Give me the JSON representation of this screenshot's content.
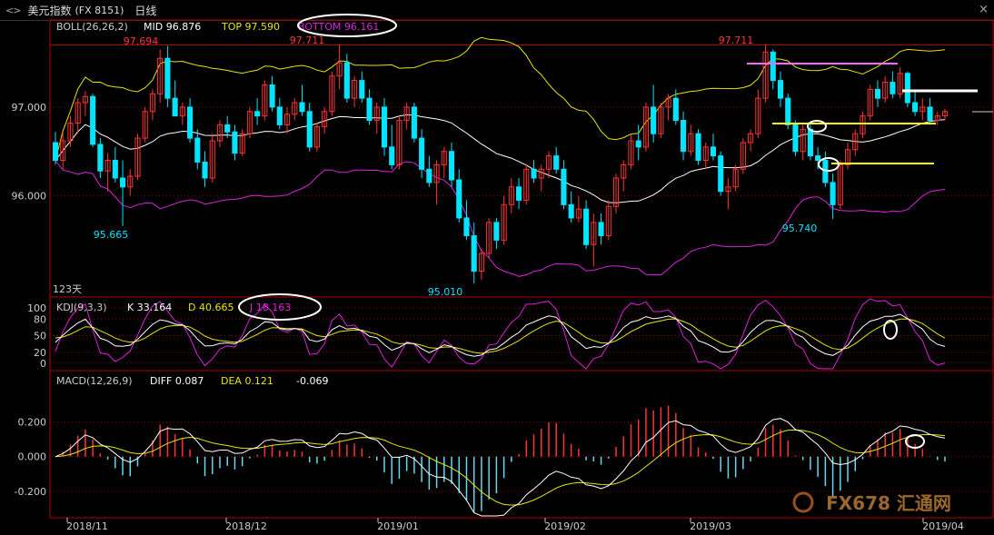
{
  "window": {
    "nav": "<>",
    "title": "美元指数",
    "code": "(FX 8151)",
    "period": "日线",
    "close_glyph": "×"
  },
  "watermark": "FX678 汇通网",
  "colors": {
    "up": "#ff3333",
    "down": "#00e5ff",
    "mid": "#ffffff",
    "top": "#e6e600",
    "bottom": "#dd22dd",
    "k": "#ffffff",
    "d": "#e6e600",
    "j": "#dd22dd",
    "diff": "#ffffff",
    "dea": "#e6e600",
    "grid": "#8b0000",
    "frame": "#b00000",
    "annotation_circle": "#ffffff"
  },
  "chart_data": [
    {
      "type": "candlestick",
      "title": "BOLL(26,26,2)",
      "legend": [
        {
          "label": "MID 96.876",
          "color": "#ffffff"
        },
        {
          "label": "TOP 97.590",
          "color": "#e6e600"
        },
        {
          "label": "BOTTOM 96.161",
          "color": "#dd22dd"
        }
      ],
      "yticks": [
        "97.000",
        "96.000"
      ],
      "ytick_values": [
        97.0,
        96.0
      ],
      "ylim": [
        94.9,
        97.9
      ],
      "xticks": [
        "2018/11",
        "2018/12",
        "2019/01",
        "2019/02",
        "2019/03",
        "2019/04"
      ],
      "annotations": [
        "97.694",
        "97.711",
        "97.711",
        "95.665",
        "95.010",
        "95.740",
        "123天"
      ],
      "ohlc": [
        [
          96.6,
          96.72,
          96.35,
          96.4
        ],
        [
          96.4,
          96.72,
          96.3,
          96.62
        ],
        [
          96.62,
          96.9,
          96.55,
          96.82
        ],
        [
          96.82,
          97.1,
          96.7,
          97.05
        ],
        [
          97.05,
          97.18,
          96.9,
          97.12
        ],
        [
          97.12,
          97.15,
          96.55,
          96.58
        ],
        [
          96.58,
          96.65,
          96.2,
          96.28
        ],
        [
          96.28,
          96.48,
          96.05,
          96.4
        ],
        [
          96.4,
          96.55,
          96.15,
          96.2
        ],
        [
          96.2,
          96.4,
          95.66,
          96.1
        ],
        [
          96.1,
          96.3,
          96.0,
          96.22
        ],
        [
          96.22,
          96.7,
          96.18,
          96.65
        ],
        [
          96.65,
          97.0,
          96.6,
          96.95
        ],
        [
          96.95,
          97.2,
          96.85,
          97.15
        ],
        [
          97.15,
          97.65,
          97.05,
          97.55
        ],
        [
          97.55,
          97.69,
          97.0,
          97.1
        ],
        [
          97.1,
          97.3,
          96.9,
          96.9
        ],
        [
          96.9,
          97.05,
          96.8,
          97.0
        ],
        [
          97.0,
          97.1,
          96.6,
          96.65
        ],
        [
          96.65,
          96.75,
          96.3,
          96.38
        ],
        [
          96.38,
          96.5,
          96.1,
          96.2
        ],
        [
          96.2,
          96.7,
          96.15,
          96.62
        ],
        [
          96.62,
          96.85,
          96.55,
          96.8
        ],
        [
          96.8,
          96.9,
          96.65,
          96.72
        ],
        [
          96.72,
          96.8,
          96.4,
          96.48
        ],
        [
          96.48,
          96.75,
          96.45,
          96.7
        ],
        [
          96.7,
          97.0,
          96.65,
          96.95
        ],
        [
          96.95,
          97.1,
          96.8,
          96.9
        ],
        [
          96.9,
          97.3,
          96.85,
          97.25
        ],
        [
          97.25,
          97.35,
          96.95,
          97.0
        ],
        [
          97.0,
          97.1,
          96.75,
          96.8
        ],
        [
          96.8,
          97.0,
          96.7,
          96.92
        ],
        [
          96.92,
          97.1,
          96.85,
          97.05
        ],
        [
          97.05,
          97.25,
          96.9,
          96.95
        ],
        [
          96.95,
          97.05,
          96.5,
          96.55
        ],
        [
          96.55,
          96.82,
          96.5,
          96.78
        ],
        [
          96.78,
          97.0,
          96.7,
          96.95
        ],
        [
          96.95,
          97.4,
          96.9,
          97.35
        ],
        [
          97.35,
          97.71,
          97.2,
          97.5
        ],
        [
          97.5,
          97.6,
          97.05,
          97.1
        ],
        [
          97.1,
          97.35,
          97.0,
          97.3
        ],
        [
          97.3,
          97.4,
          97.05,
          97.1
        ],
        [
          97.1,
          97.2,
          96.8,
          96.85
        ],
        [
          96.85,
          97.05,
          96.7,
          97.0
        ],
        [
          97.0,
          97.1,
          96.45,
          96.55
        ],
        [
          96.55,
          96.8,
          96.3,
          96.35
        ],
        [
          96.35,
          96.9,
          96.3,
          96.85
        ],
        [
          96.85,
          97.05,
          96.75,
          97.0
        ],
        [
          97.0,
          97.05,
          96.6,
          96.65
        ],
        [
          96.65,
          96.75,
          96.2,
          96.3
        ],
        [
          96.3,
          96.45,
          96.1,
          96.15
        ],
        [
          96.15,
          96.4,
          95.9,
          96.35
        ],
        [
          96.35,
          96.55,
          96.2,
          96.5
        ],
        [
          96.5,
          96.6,
          96.1,
          96.18
        ],
        [
          96.18,
          96.3,
          95.7,
          95.75
        ],
        [
          95.75,
          95.95,
          95.5,
          95.55
        ],
        [
          95.55,
          95.7,
          95.01,
          95.15
        ],
        [
          95.15,
          95.4,
          95.05,
          95.35
        ],
        [
          95.35,
          95.75,
          95.3,
          95.7
        ],
        [
          95.7,
          95.75,
          95.4,
          95.5
        ],
        [
          95.5,
          96.0,
          95.45,
          95.9
        ],
        [
          95.9,
          96.2,
          95.8,
          96.1
        ],
        [
          96.1,
          96.2,
          95.85,
          95.95
        ],
        [
          95.95,
          96.35,
          95.9,
          96.3
        ],
        [
          96.3,
          96.4,
          96.15,
          96.2
        ],
        [
          96.2,
          96.35,
          96.05,
          96.3
        ],
        [
          96.3,
          96.5,
          96.2,
          96.45
        ],
        [
          96.45,
          96.55,
          96.25,
          96.3
        ],
        [
          96.3,
          96.4,
          95.85,
          95.9
        ],
        [
          95.9,
          96.05,
          95.7,
          95.75
        ],
        [
          95.75,
          96.0,
          95.7,
          95.85
        ],
        [
          95.85,
          95.95,
          95.4,
          95.45
        ],
        [
          95.45,
          95.8,
          95.2,
          95.7
        ],
        [
          95.7,
          95.8,
          95.45,
          95.55
        ],
        [
          95.55,
          95.95,
          95.5,
          95.88
        ],
        [
          95.88,
          96.25,
          95.8,
          96.2
        ],
        [
          96.2,
          96.4,
          96.05,
          96.35
        ],
        [
          96.35,
          96.7,
          96.3,
          96.62
        ],
        [
          96.62,
          96.8,
          96.4,
          96.55
        ],
        [
          96.55,
          97.05,
          96.5,
          97.0
        ],
        [
          97.0,
          97.25,
          96.6,
          96.7
        ],
        [
          96.7,
          97.05,
          96.65,
          97.0
        ],
        [
          97.0,
          97.15,
          96.85,
          97.1
        ],
        [
          97.1,
          97.2,
          96.8,
          96.85
        ],
        [
          96.85,
          96.95,
          96.4,
          96.5
        ],
        [
          96.5,
          96.8,
          96.45,
          96.7
        ],
        [
          96.7,
          96.75,
          96.35,
          96.4
        ],
        [
          96.4,
          96.6,
          96.3,
          96.55
        ],
        [
          96.55,
          96.7,
          96.4,
          96.45
        ],
        [
          96.45,
          96.5,
          96.0,
          96.05
        ],
        [
          96.05,
          96.2,
          95.85,
          96.1
        ],
        [
          96.1,
          96.35,
          96.05,
          96.3
        ],
        [
          96.3,
          96.65,
          96.25,
          96.6
        ],
        [
          96.6,
          96.75,
          96.5,
          96.7
        ],
        [
          96.7,
          97.2,
          96.65,
          97.1
        ],
        [
          97.1,
          97.71,
          97.05,
          97.62
        ],
        [
          97.62,
          97.65,
          97.2,
          97.3
        ],
        [
          97.3,
          97.4,
          97.0,
          97.1
        ],
        [
          97.1,
          97.15,
          96.75,
          96.8
        ],
        [
          96.8,
          96.85,
          96.45,
          96.5
        ],
        [
          96.5,
          96.8,
          96.4,
          96.75
        ],
        [
          96.75,
          96.8,
          96.4,
          96.45
        ],
        [
          96.45,
          96.55,
          96.3,
          96.4
        ],
        [
          96.4,
          96.5,
          96.1,
          96.15
        ],
        [
          96.15,
          96.25,
          95.74,
          95.9
        ],
        [
          95.9,
          96.4,
          95.85,
          96.35
        ],
        [
          96.35,
          96.6,
          96.3,
          96.52
        ],
        [
          96.52,
          96.75,
          96.45,
          96.7
        ],
        [
          96.7,
          96.95,
          96.65,
          96.9
        ],
        [
          96.9,
          97.25,
          96.85,
          97.2
        ],
        [
          97.2,
          97.3,
          97.0,
          97.1
        ],
        [
          97.1,
          97.35,
          97.05,
          97.28
        ],
        [
          97.28,
          97.4,
          97.1,
          97.15
        ],
        [
          97.15,
          97.45,
          97.1,
          97.38
        ],
        [
          97.38,
          97.4,
          97.0,
          97.05
        ],
        [
          97.05,
          97.2,
          96.9,
          96.95
        ],
        [
          96.95,
          97.1,
          96.85,
          97.0
        ],
        [
          97.0,
          97.1,
          96.8,
          96.85
        ],
        [
          96.85,
          96.95,
          96.8,
          96.9
        ],
        [
          96.9,
          96.98,
          96.85,
          96.95
        ]
      ]
    },
    {
      "type": "line",
      "title": "KDJ(9,3,3)",
      "legend": [
        {
          "label": "K 33.164",
          "color": "#ffffff"
        },
        {
          "label": "D 40.665",
          "color": "#e6e600"
        },
        {
          "label": "J 18.163",
          "color": "#dd22dd"
        }
      ],
      "yticks": [
        "100",
        "80",
        "50",
        "20",
        "0"
      ],
      "ytick_values": [
        100,
        80,
        50,
        20,
        0
      ],
      "ylim": [
        -10,
        110
      ]
    },
    {
      "type": "bar",
      "title": "MACD(12,26,9)",
      "legend": [
        {
          "label": "DIFF 0.087",
          "color": "#ffffff"
        },
        {
          "label": "DEA 0.121",
          "color": "#e6e600"
        },
        {
          "label": "-0.069",
          "color": "#ffffff"
        }
      ],
      "yticks": [
        "0.200",
        "0.000",
        "-0.200"
      ],
      "ytick_values": [
        0.2,
        0.0,
        -0.2
      ],
      "ylim": [
        -0.33,
        0.4
      ]
    }
  ]
}
